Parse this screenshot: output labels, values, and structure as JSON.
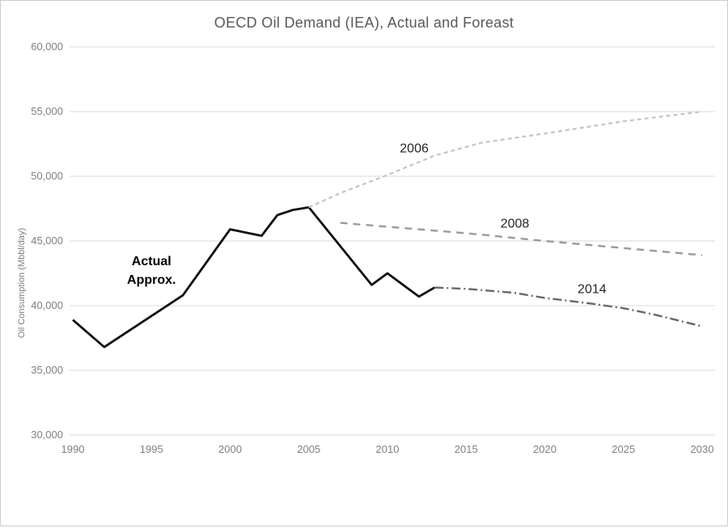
{
  "frame": {
    "border_color": "#c9cdd2"
  },
  "chart_data": {
    "type": "line",
    "title": "OECD Oil Demand (IEA), Actual and Foreast",
    "xlabel": "",
    "ylabel": "Oil Consumption  (Mbbl/day)",
    "xlim": [
      1990,
      2030
    ],
    "ylim": [
      30000,
      60000
    ],
    "grid": "horizontal-only",
    "legend": "inline-labels-on-lines",
    "colors": {
      "title": "#595959",
      "tick_labels": "#7f7f7f",
      "gridlines": "#d9d9d9",
      "background": "#ffffff"
    },
    "x_ticks": [
      {
        "value": 1990,
        "label": "1990"
      },
      {
        "value": 1995,
        "label": "1995"
      },
      {
        "value": 2000,
        "label": "2000"
      },
      {
        "value": 2005,
        "label": "2005"
      },
      {
        "value": 2010,
        "label": "2010"
      },
      {
        "value": 2015,
        "label": "2015"
      },
      {
        "value": 2020,
        "label": "2020"
      },
      {
        "value": 2025,
        "label": "2025"
      },
      {
        "value": 2030,
        "label": "2030"
      }
    ],
    "y_ticks": [
      {
        "value": 30000,
        "label": "30,000"
      },
      {
        "value": 35000,
        "label": "35,000"
      },
      {
        "value": 40000,
        "label": "40,000"
      },
      {
        "value": 45000,
        "label": "45,000"
      },
      {
        "value": 50000,
        "label": "50,000"
      },
      {
        "value": 55000,
        "label": "55,000"
      },
      {
        "value": 60000,
        "label": "60,000"
      }
    ],
    "series": [
      {
        "name": "actual",
        "label": "Actual\nApprox.",
        "label_bold": true,
        "label_at": {
          "x": 1995.0,
          "y": 42700
        },
        "color": "#111111",
        "width": 2.8,
        "dash": "",
        "points": [
          [
            1990,
            38900
          ],
          [
            1992,
            36800
          ],
          [
            1997,
            40800
          ],
          [
            2000,
            45900
          ],
          [
            2002,
            45400
          ],
          [
            2003,
            47000
          ],
          [
            2004,
            47400
          ],
          [
            2005,
            47600
          ],
          [
            2009,
            41600
          ],
          [
            2010,
            42500
          ],
          [
            2012,
            40700
          ],
          [
            2013,
            41400
          ]
        ]
      },
      {
        "name": "forecast-2006",
        "label": "2006",
        "label_bold": false,
        "label_at": {
          "x": 2011.7,
          "y": 52100
        },
        "color": "#c4c4c4",
        "width": 2.2,
        "dash": "5 4",
        "points": [
          [
            2005,
            47600
          ],
          [
            2007,
            48700
          ],
          [
            2010,
            50100
          ],
          [
            2013,
            51600
          ],
          [
            2016,
            52600
          ],
          [
            2020,
            53300
          ],
          [
            2025,
            54250
          ],
          [
            2030,
            55000
          ]
        ]
      },
      {
        "name": "forecast-2008",
        "label": "2008",
        "label_bold": false,
        "label_at": {
          "x": 2018.1,
          "y": 46300
        },
        "color": "#9b9b9b",
        "width": 2.4,
        "dash": "9 7",
        "points": [
          [
            2007,
            46400
          ],
          [
            2010,
            46100
          ],
          [
            2015,
            45600
          ],
          [
            2020,
            45000
          ],
          [
            2025,
            44450
          ],
          [
            2030,
            43900
          ]
        ]
      },
      {
        "name": "forecast-2014",
        "label": "2014",
        "label_bold": false,
        "label_at": {
          "x": 2023.0,
          "y": 41250
        },
        "color": "#686868",
        "width": 2.4,
        "dash": "11 4 2 4",
        "points": [
          [
            2013,
            41400
          ],
          [
            2015,
            41300
          ],
          [
            2018,
            41000
          ],
          [
            2020,
            40600
          ],
          [
            2023,
            40150
          ],
          [
            2025,
            39800
          ],
          [
            2027,
            39300
          ],
          [
            2030,
            38400
          ]
        ]
      }
    ]
  }
}
